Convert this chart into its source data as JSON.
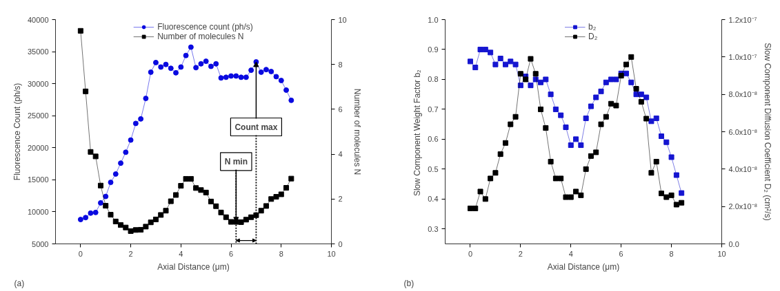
{
  "chart_data": [
    {
      "type": "line",
      "xlabel": "Axial Distance (μm)",
      "ylabel": "Fluorescence Count (ph/s)",
      "y2label": "Number of molecules N",
      "xlim": [
        -1,
        10
      ],
      "xticks": [
        0,
        2,
        4,
        6,
        8,
        10
      ],
      "ylim": [
        5000,
        40000
      ],
      "yticks": [
        5000,
        10000,
        15000,
        20000,
        25000,
        30000,
        35000,
        40000
      ],
      "y2lim": [
        0,
        10
      ],
      "y2ticks": [
        0,
        2,
        4,
        6,
        8,
        10
      ],
      "legend": "top",
      "x": [
        0,
        0.2,
        0.4,
        0.6,
        0.8,
        1.0,
        1.2,
        1.4,
        1.6,
        1.8,
        2.0,
        2.2,
        2.4,
        2.6,
        2.8,
        3.0,
        3.2,
        3.4,
        3.6,
        3.8,
        4.0,
        4.2,
        4.4,
        4.6,
        4.8,
        5.0,
        5.2,
        5.4,
        5.6,
        5.8,
        6.0,
        6.2,
        6.4,
        6.6,
        6.8,
        7.0,
        7.2,
        7.4,
        7.6,
        7.8,
        8.0,
        8.2,
        8.4
      ],
      "series": [
        {
          "name": "Fluorescence count (ph/s)",
          "color": "#0a0ae0",
          "marker": "circle",
          "values": [
            8800,
            9100,
            9800,
            9900,
            11400,
            12400,
            14600,
            15900,
            17600,
            19300,
            21200,
            23800,
            24500,
            27700,
            31800,
            33300,
            32600,
            33000,
            32400,
            31700,
            32600,
            34400,
            35700,
            32500,
            33100,
            33500,
            32700,
            33100,
            30900,
            31000,
            31200,
            31200,
            31000,
            31000,
            32100,
            33400,
            31800,
            32200,
            31900,
            31100,
            30500,
            29000,
            27400
          ]
        },
        {
          "name": "Number of molecules N",
          "color": "#000000",
          "marker": "square",
          "axis": "y2",
          "values": [
            9.5,
            6.8,
            4.1,
            3.9,
            2.6,
            1.7,
            1.3,
            1.0,
            0.84,
            0.73,
            0.57,
            0.62,
            0.63,
            0.77,
            0.96,
            1.09,
            1.29,
            1.48,
            1.9,
            2.18,
            2.59,
            2.9,
            2.9,
            2.49,
            2.4,
            2.29,
            1.89,
            1.68,
            1.4,
            1.19,
            0.98,
            0.98,
            0.97,
            1.08,
            1.19,
            1.28,
            1.48,
            1.69,
            2.0,
            2.1,
            2.21,
            2.5,
            2.91
          ]
        }
      ],
      "annotations": [
        "(a)",
        {
          "text": "N min",
          "x": 6.2,
          "y": 8400
        },
        {
          "text": "Count max",
          "x": 7.0,
          "y": 33400
        }
      ]
    },
    {
      "type": "line",
      "xlabel": "Axial Distance (μm)",
      "ylabel": "Slow  Component Weight Factor b₂",
      "y2label": "Slow Component Diffusion Coefficient D₂ (cm²/s)",
      "xlim": [
        -1,
        10
      ],
      "xticks": [
        0,
        2,
        4,
        6,
        8,
        10
      ],
      "ylim": [
        0.25,
        1.0
      ],
      "yticks": [
        0.3,
        0.4,
        0.5,
        0.6,
        0.7,
        0.8,
        0.9,
        {
          "value": 1.0,
          "label": "1.0"
        }
      ],
      "y2lim": [
        0,
        1.2e-07
      ],
      "y2ticks": [
        {
          "value": 0,
          "label": "0.0"
        },
        {
          "value": 2e-08,
          "label": "2.0x10⁻⁸"
        },
        {
          "value": 4e-08,
          "label": "4.0x10⁻⁸"
        },
        {
          "value": 6e-08,
          "label": "6.0x10⁻⁸"
        },
        {
          "value": 8e-08,
          "label": "8.0x10⁻⁸"
        },
        {
          "value": 1e-07,
          "label": "1.0x10⁻⁷"
        },
        {
          "value": 1.2e-07,
          "label": "1.2x10⁻⁷"
        }
      ],
      "legend": "top",
      "x": [
        0,
        0.2,
        0.4,
        0.6,
        0.8,
        1.0,
        1.2,
        1.4,
        1.6,
        1.8,
        2.0,
        2.2,
        2.4,
        2.6,
        2.8,
        3.0,
        3.2,
        3.4,
        3.6,
        3.8,
        4.0,
        4.2,
        4.4,
        4.6,
        4.8,
        5.0,
        5.2,
        5.4,
        5.6,
        5.8,
        6.0,
        6.2,
        6.4,
        6.6,
        6.8,
        7.0,
        7.2,
        7.4,
        7.6,
        7.8,
        8.0,
        8.2,
        8.4
      ],
      "series": [
        {
          "name": "b₂",
          "color": "#1515d0",
          "marker": "square",
          "values": [
            0.86,
            0.84,
            0.9,
            0.9,
            0.89,
            0.85,
            0.87,
            0.85,
            0.86,
            0.85,
            0.78,
            0.81,
            0.78,
            0.8,
            0.79,
            0.8,
            0.75,
            0.7,
            0.68,
            0.64,
            0.58,
            0.6,
            0.58,
            0.67,
            0.71,
            0.74,
            0.76,
            0.79,
            0.8,
            0.8,
            0.82,
            0.82,
            0.79,
            0.75,
            0.75,
            0.74,
            0.66,
            0.67,
            0.61,
            0.59,
            0.54,
            0.48,
            0.42
          ]
        },
        {
          "name": "D₂",
          "color": "#000000",
          "marker": "square",
          "axis": "y2",
          "values": [
            1.9e-08,
            1.9e-08,
            2.8e-08,
            2.4e-08,
            3.5e-08,
            3.8e-08,
            4.8e-08,
            5.4e-08,
            6.4e-08,
            6.8e-08,
            9.1e-08,
            8.8e-08,
            9.9e-08,
            9.1e-08,
            7.2e-08,
            6.2e-08,
            4.4e-08,
            3.5e-08,
            3.5e-08,
            2.5e-08,
            2.5e-08,
            2.8e-08,
            2.6e-08,
            4e-08,
            4.7e-08,
            4.9e-08,
            6.4e-08,
            6.8e-08,
            7.5e-08,
            7.4e-08,
            9e-08,
            9.6e-08,
            1e-07,
            8.3e-08,
            7.6e-08,
            6.7e-08,
            3.8e-08,
            4.4e-08,
            2.7e-08,
            2.5e-08,
            2.6e-08,
            2.1e-08,
            2.2e-08
          ]
        }
      ],
      "annotations": [
        "(b)"
      ]
    }
  ]
}
